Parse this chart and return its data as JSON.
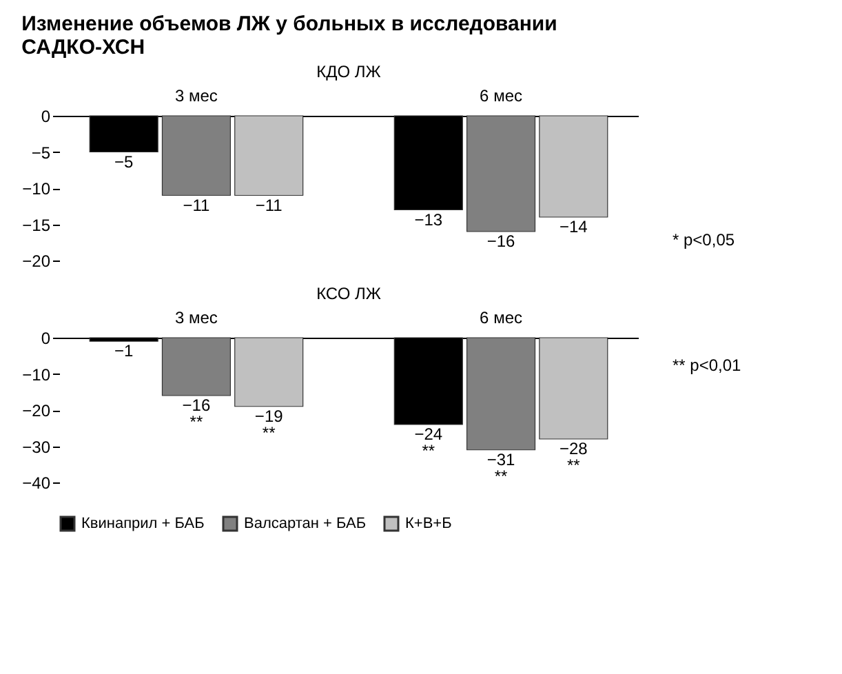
{
  "chart_data": [
    {
      "type": "bar",
      "title": "Изменение объемов ЛЖ у больных в исследовании САДКО-ХСН",
      "subtitle": "КДО ЛЖ",
      "categories": [
        "3 мес",
        "6 мес"
      ],
      "series": [
        {
          "name": "Квинаприл + БАБ",
          "color": "#000000",
          "values": [
            -5,
            -13
          ]
        },
        {
          "name": "Валсартан + БАБ",
          "color": "#808080",
          "values": [
            -11,
            -16
          ]
        },
        {
          "name": "К+В+Б",
          "color": "#c0c0c0",
          "values": [
            -11,
            -14
          ]
        }
      ],
      "ylim": [
        -20,
        0
      ],
      "yticks": [
        0,
        -5,
        -10,
        -15,
        -20
      ],
      "data_labels": true,
      "grid": false,
      "legend": "bottom",
      "annotations": [
        "*   p<0,05"
      ]
    },
    {
      "type": "bar",
      "title": "КСО ЛЖ",
      "categories": [
        "3 мес",
        "6 мес"
      ],
      "series": [
        {
          "name": "Квинаприл + БАБ",
          "color": "#000000",
          "values": [
            -1,
            -24
          ],
          "value_labels": [
            "−1",
            "−24\n**"
          ]
        },
        {
          "name": "Валсартан + БАБ",
          "color": "#808080",
          "values": [
            -16,
            -31
          ],
          "value_labels": [
            "−16\n**",
            "−31\n**"
          ]
        },
        {
          "name": "К+В+Б",
          "color": "#c0c0c0",
          "values": [
            -19,
            -28
          ],
          "value_labels": [
            "−19\n**",
            "−28\n**"
          ]
        }
      ],
      "ylim": [
        -40,
        0
      ],
      "yticks": [
        0,
        -10,
        -20,
        -30,
        -40
      ],
      "grid": false,
      "annotations": [
        "**   p<0,01"
      ]
    }
  ]
}
